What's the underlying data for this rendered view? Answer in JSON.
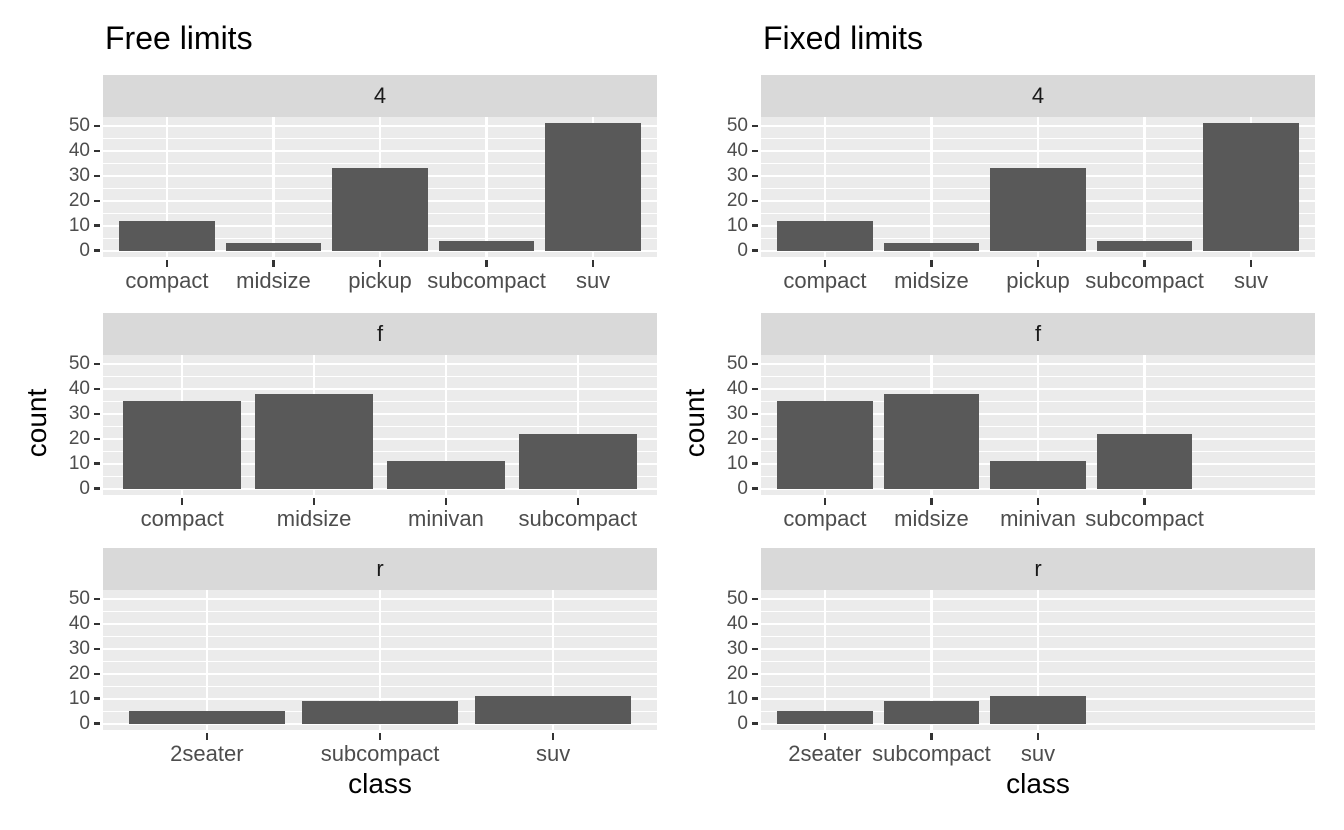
{
  "colors": {
    "background": "#FFFFFF",
    "panel_background": "#EBEBEB",
    "strip_background": "#D9D9D9",
    "gridline": "#FFFFFF",
    "bar_fill": "#595959",
    "axis_text": "#4D4D4D",
    "tick_mark": "#333333",
    "strip_text": "#1A1A1A",
    "title_text": "#000000"
  },
  "chart_data": [
    {
      "type": "bar",
      "title": "Free limits",
      "xlabel": "class",
      "ylabel": "count",
      "scales": "free",
      "legend": "none",
      "grid": "on",
      "y_ticks": [
        0,
        10,
        20,
        30,
        40,
        50
      ],
      "ylim": [
        0,
        53
      ],
      "facet_values": [
        "4",
        "f",
        "r"
      ],
      "facets": [
        {
          "label": "4",
          "categories": [
            "compact",
            "midsize",
            "pickup",
            "subcompact",
            "suv"
          ],
          "values": [
            12,
            3,
            33,
            4,
            51
          ]
        },
        {
          "label": "f",
          "categories": [
            "compact",
            "midsize",
            "minivan",
            "subcompact"
          ],
          "values": [
            35,
            38,
            11,
            22
          ]
        },
        {
          "label": "r",
          "categories": [
            "2seater",
            "subcompact",
            "suv"
          ],
          "values": [
            5,
            9,
            11
          ]
        }
      ]
    },
    {
      "type": "bar",
      "title": "Fixed limits",
      "xlabel": "class",
      "ylabel": "count",
      "scales": "fixed",
      "legend": "none",
      "grid": "on",
      "y_ticks": [
        0,
        10,
        20,
        30,
        40,
        50
      ],
      "ylim": [
        0,
        53
      ],
      "facet_values": [
        "4",
        "f",
        "r"
      ],
      "facets": [
        {
          "label": "4",
          "categories": [
            "compact",
            "midsize",
            "pickup",
            "subcompact",
            "suv"
          ],
          "values": [
            12,
            3,
            33,
            4,
            51
          ]
        },
        {
          "label": "f",
          "categories": [
            "compact",
            "midsize",
            "minivan",
            "subcompact"
          ],
          "values": [
            35,
            38,
            11,
            22
          ]
        },
        {
          "label": "r",
          "categories": [
            "2seater",
            "subcompact",
            "suv"
          ],
          "values": [
            5,
            9,
            11
          ]
        }
      ]
    }
  ]
}
